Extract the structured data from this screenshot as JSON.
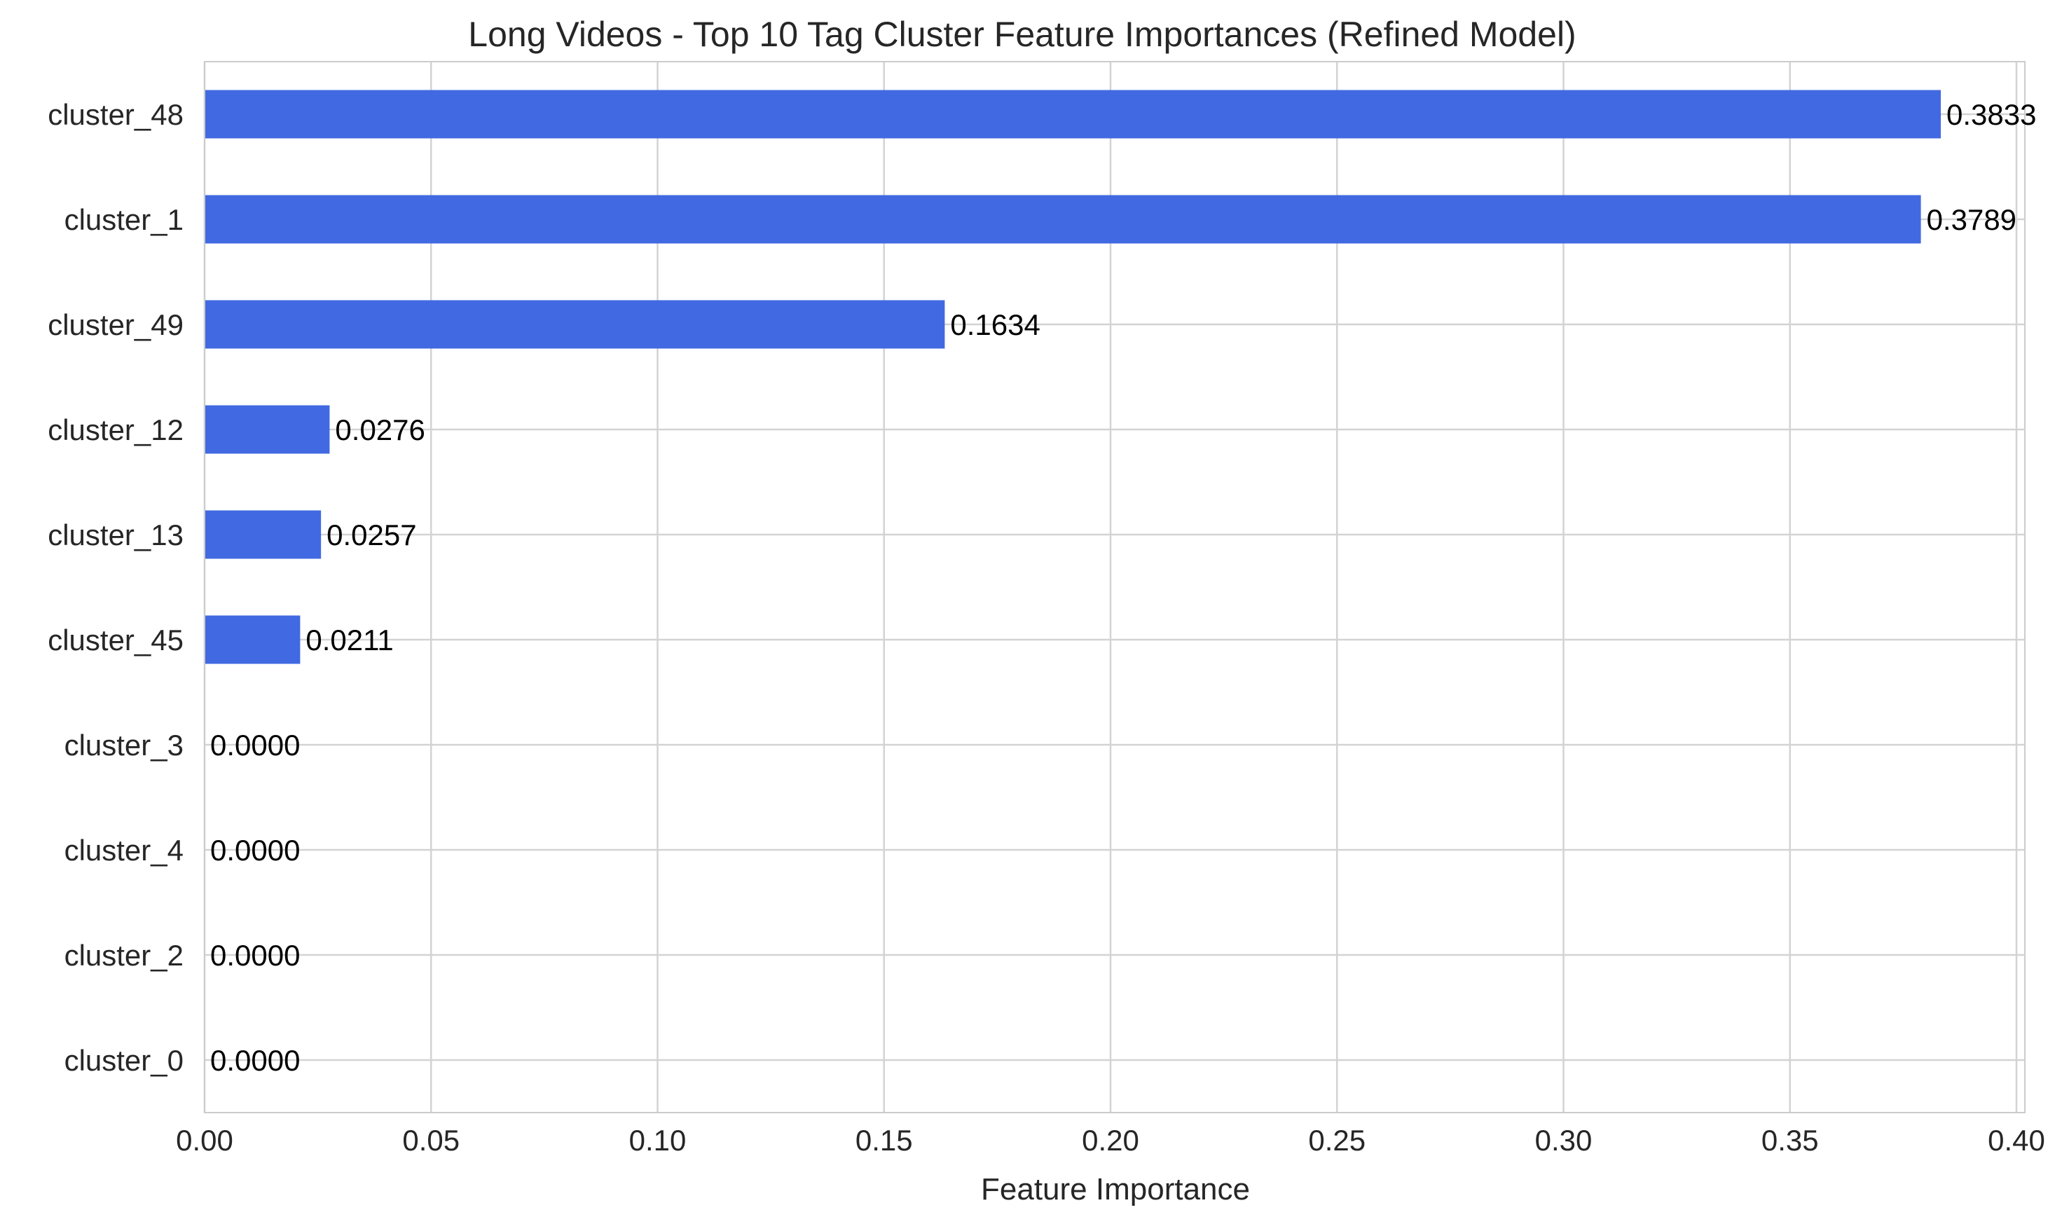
{
  "chart_data": {
    "type": "bar",
    "orientation": "horizontal",
    "title": "Long Videos - Top 10 Tag Cluster Feature Importances (Refined Model)",
    "xlabel": "Feature Importance",
    "ylabel": "",
    "xlim": [
      0,
      0.4
    ],
    "xticks": [
      "0.00",
      "0.05",
      "0.10",
      "0.15",
      "0.20",
      "0.25",
      "0.30",
      "0.35",
      "0.40"
    ],
    "categories": [
      "cluster_48",
      "cluster_1",
      "cluster_49",
      "cluster_12",
      "cluster_13",
      "cluster_45",
      "cluster_3",
      "cluster_4",
      "cluster_2",
      "cluster_0"
    ],
    "values": [
      0.3833,
      0.3789,
      0.1634,
      0.0276,
      0.0257,
      0.0211,
      0.0,
      0.0,
      0.0,
      0.0
    ],
    "value_labels": [
      "0.3833",
      "0.3789",
      "0.1634",
      "0.0276",
      "0.0257",
      "0.0211",
      "0.0000",
      "0.0000",
      "0.0000",
      "0.0000"
    ],
    "grid": true,
    "bar_color": "#4169E1",
    "grid_color": "#d3d3d3"
  }
}
